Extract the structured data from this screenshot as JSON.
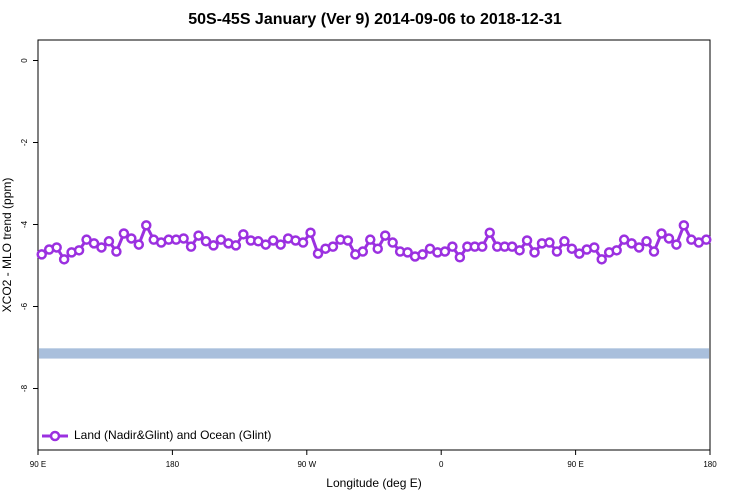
{
  "chart_data": {
    "type": "line",
    "title": "50S-45S January (Ver 9)   2014-09-06 to 2018-12-31",
    "x_label": "Longitude (deg E)",
    "y_label": "XCO2 - MLO trend (ppm)",
    "xlim": [
      90,
      540
    ],
    "ylim": [
      -9.5,
      0.5
    ],
    "xticks": [
      {
        "value": 90,
        "label": "90 E"
      },
      180,
      {
        "value": 270,
        "label": "90 W"
      },
      {
        "value": 360,
        "label": "0"
      },
      {
        "value": 450,
        "label": "90 E"
      },
      {
        "value": 540,
        "label": "180"
      }
    ],
    "yticks": [
      -8,
      -6,
      -4,
      -2,
      0
    ],
    "legend_position": "bottom-left",
    "band": {
      "ymin": -7.27,
      "ymax": -7.02,
      "color": "#a9bfdc"
    },
    "x": [
      92.5,
      97.5,
      102.5,
      107.5,
      112.5,
      117.5,
      122.5,
      127.5,
      132.5,
      137.5,
      142.5,
      147.5,
      152.5,
      157.5,
      162.5,
      167.5,
      172.5,
      177.5,
      182.5,
      187.5,
      192.5,
      197.5,
      202.5,
      207.5,
      212.5,
      217.5,
      222.5,
      227.5,
      232.5,
      237.5,
      242.5,
      247.5,
      252.5,
      257.5,
      262.5,
      267.5,
      272.5,
      277.5,
      282.5,
      287.5,
      292.5,
      297.5,
      302.5,
      307.5,
      312.5,
      317.5,
      322.5,
      327.5,
      332.5,
      337.5,
      342.5,
      347.5,
      352.5,
      357.5,
      362.5,
      367.5,
      372.5,
      377.5,
      382.5,
      387.5,
      392.5,
      397.5,
      402.5,
      407.5,
      412.5,
      417.5,
      422.5,
      427.5,
      432.5,
      437.5,
      442.5,
      447.5,
      452.5,
      457.5,
      462.5,
      467.5,
      472.5,
      477.5,
      482.5,
      487.5,
      492.5,
      497.5,
      502.5,
      507.5,
      512.5,
      517.5,
      522.5,
      527.5,
      532.5,
      537.5
    ],
    "series": [
      {
        "name": "Land (Nadir&Glint) and Ocean (Glint)",
        "color": "#9b30e0",
        "values": [
          -4.73,
          -4.61,
          -4.56,
          -4.85,
          -4.68,
          -4.63,
          -4.37,
          -4.46,
          -4.56,
          -4.41,
          -4.66,
          -4.22,
          -4.34,
          -4.49,
          -4.02,
          -4.37,
          -4.44,
          -4.37,
          -4.37,
          -4.34,
          -4.54,
          -4.27,
          -4.41,
          -4.51,
          -4.37,
          -4.46,
          -4.51,
          -4.24,
          -4.39,
          -4.41,
          -4.49,
          -4.39,
          -4.49,
          -4.34,
          -4.39,
          -4.44,
          -4.2,
          -4.71,
          -4.59,
          -4.54,
          -4.37,
          -4.39,
          -4.73,
          -4.66,
          -4.37,
          -4.59,
          -4.27,
          -4.44,
          -4.66,
          -4.68,
          -4.78,
          -4.73,
          -4.59,
          -4.68,
          -4.66,
          -4.54,
          -4.8,
          -4.54,
          -4.54,
          -4.54,
          -4.2,
          -4.54,
          -4.54,
          -4.54,
          -4.63,
          -4.39,
          -4.68,
          -4.46,
          -4.44,
          -4.66,
          -4.41,
          -4.59,
          -4.71,
          -4.61,
          -4.56,
          -4.85,
          -4.68,
          -4.63,
          -4.37,
          -4.46,
          -4.56,
          -4.41,
          -4.66,
          -4.22,
          -4.34,
          -4.49,
          -4.02,
          -4.37,
          -4.44,
          -4.37
        ]
      }
    ]
  }
}
